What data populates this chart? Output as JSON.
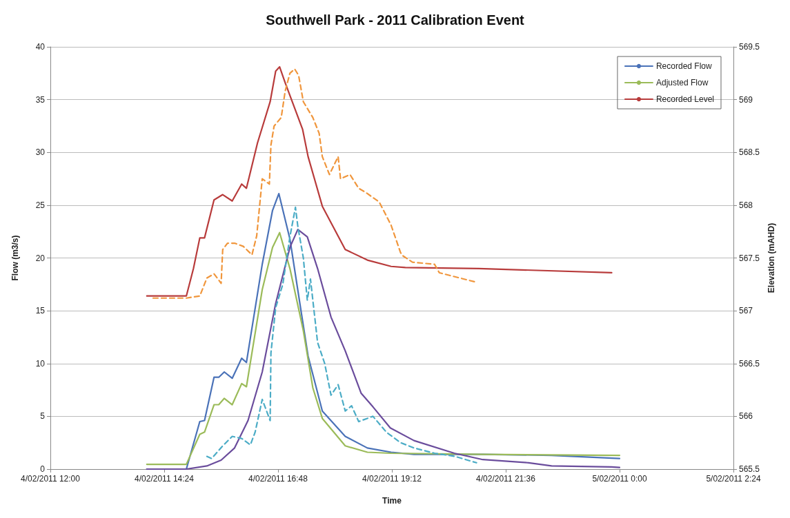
{
  "chart_data": {
    "type": "line",
    "title": "Southwell Park - 2011 Calibration Event",
    "xlabel": "Time",
    "ylabel": "Flow (m3/s)",
    "y2label": "Elevation (mAHD)",
    "xlim": [
      "2011-02-04T12:00",
      "2011-02-05T02:24"
    ],
    "xticks": [
      {
        "value": "2011-02-04T12:00",
        "label": "4/02/2011 12:00"
      },
      {
        "value": "2011-02-04T14:24",
        "label": "4/02/2011 14:24"
      },
      {
        "value": "2011-02-04T16:48",
        "label": "4/02/2011 16:48"
      },
      {
        "value": "2011-02-04T19:12",
        "label": "4/02/2011 19:12"
      },
      {
        "value": "2011-02-04T21:36",
        "label": "4/02/2011 21:36"
      },
      {
        "value": "2011-02-05T00:00",
        "label": "5/02/2011 0:00"
      },
      {
        "value": "2011-02-05T02:24",
        "label": "5/02/2011 2:24"
      }
    ],
    "ylim": [
      0,
      40
    ],
    "yticks": [
      0,
      5,
      10,
      15,
      20,
      25,
      30,
      35,
      40
    ],
    "y2lim": [
      565.5,
      569.5
    ],
    "y2ticks": [
      565.5,
      566,
      566.5,
      567,
      567.5,
      568,
      568.5,
      569,
      569.5
    ],
    "grid": "y",
    "legend": "top right",
    "marker": "none",
    "series": [
      {
        "name": "Recorded Flow",
        "color": "#4a72b8",
        "line_style": "solid",
        "x": [
          "2011-02-04T14:02",
          "2011-02-04T14:52",
          "2011-02-04T15:09",
          "2011-02-04T15:15",
          "2011-02-04T15:27",
          "2011-02-04T15:33",
          "2011-02-04T15:40",
          "2011-02-04T15:50",
          "2011-02-04T16:02",
          "2011-02-04T16:08",
          "2011-02-04T16:28",
          "2011-02-04T16:41",
          "2011-02-04T16:49",
          "2011-02-04T17:03",
          "2011-02-04T17:16",
          "2011-02-04T17:26",
          "2011-02-04T17:44",
          "2011-02-04T18:13",
          "2011-02-04T18:41",
          "2011-02-04T19:11",
          "2011-02-04T19:40",
          "2011-02-04T21:07",
          "2011-02-04T22:34",
          "2011-02-05T00:00"
        ],
        "values": [
          0,
          0,
          4.5,
          4.6,
          8.7,
          8.7,
          9.2,
          8.6,
          10.5,
          10.1,
          19.4,
          24.5,
          26.1,
          21.8,
          15.5,
          10.7,
          5.5,
          3.1,
          2.0,
          1.6,
          1.4,
          1.4,
          1.3,
          1.0
        ]
      },
      {
        "name": "Adjusted Flow",
        "color": "#9bbb59",
        "line_style": "solid",
        "x": [
          "2011-02-04T14:02",
          "2011-02-04T14:52",
          "2011-02-04T15:09",
          "2011-02-04T15:15",
          "2011-02-04T15:27",
          "2011-02-04T15:33",
          "2011-02-04T15:40",
          "2011-02-04T15:50",
          "2011-02-04T16:02",
          "2011-02-04T16:08",
          "2011-02-04T16:28",
          "2011-02-04T16:41",
          "2011-02-04T16:50",
          "2011-02-04T17:03",
          "2011-02-04T17:20",
          "2011-02-04T17:32",
          "2011-02-04T17:44",
          "2011-02-04T18:13",
          "2011-02-04T18:41",
          "2011-02-04T19:11",
          "2011-02-04T21:07",
          "2011-02-05T00:00"
        ],
        "values": [
          0.45,
          0.45,
          3.3,
          3.5,
          6.1,
          6.1,
          6.7,
          6.1,
          8.1,
          7.8,
          17,
          21,
          22.4,
          19,
          13.1,
          7.7,
          4.8,
          2.2,
          1.6,
          1.5,
          1.4,
          1.3
        ]
      },
      {
        "color": "#6a4c9c",
        "line_style": "solid",
        "x": [
          "2011-02-04T14:02",
          "2011-02-04T14:52",
          "2011-02-04T15:18",
          "2011-02-04T15:36",
          "2011-02-04T15:53",
          "2011-02-04T16:10",
          "2011-02-04T16:28",
          "2011-02-04T16:45",
          "2011-02-04T17:03",
          "2011-02-04T17:13",
          "2011-02-04T17:25",
          "2011-02-04T17:38",
          "2011-02-04T17:55",
          "2011-02-04T18:13",
          "2011-02-04T18:33",
          "2011-02-04T18:48",
          "2011-02-04T19:10",
          "2011-02-04T19:40",
          "2011-02-04T20:31",
          "2011-02-04T21:07",
          "2011-02-04T22:05",
          "2011-02-04T22:34",
          "2011-02-04T23:50",
          "2011-02-05T00:00"
        ],
        "values": [
          0,
          0,
          0.3,
          0.85,
          2,
          4.6,
          9.2,
          15.7,
          21,
          22.7,
          22,
          19,
          14.4,
          11.2,
          7.2,
          5.9,
          3.9,
          2.7,
          1.5,
          0.9,
          0.6,
          0.3,
          0.2,
          0.15
        ]
      },
      {
        "color": "#4bacc6",
        "line_style": "dashed",
        "x": [
          "2011-02-04T15:18",
          "2011-02-04T15:24",
          "2011-02-04T15:38",
          "2011-02-04T15:50",
          "2011-02-04T16:02",
          "2011-02-04T16:13",
          "2011-02-04T16:19",
          "2011-02-04T16:28",
          "2011-02-04T16:38",
          "2011-02-04T16:39",
          "2011-02-04T16:45",
          "2011-02-04T16:54",
          "2011-02-04T17:03",
          "2011-02-04T17:10",
          "2011-02-04T17:13",
          "2011-02-04T17:20",
          "2011-02-04T17:25",
          "2011-02-04T17:29",
          "2011-02-04T17:38",
          "2011-02-04T17:47",
          "2011-02-04T17:55",
          "2011-02-04T18:04",
          "2011-02-04T18:13",
          "2011-02-04T18:21",
          "2011-02-04T18:30",
          "2011-02-04T18:48",
          "2011-02-04T19:05",
          "2011-02-04T19:23",
          "2011-02-04T19:40",
          "2011-02-04T20:06",
          "2011-02-04T20:32",
          "2011-02-04T20:59"
        ],
        "values": [
          1.2,
          1.0,
          2.2,
          3.1,
          2.9,
          2.3,
          3.5,
          6.6,
          4.6,
          11,
          15.3,
          17.5,
          22,
          24.8,
          23,
          20,
          16,
          18,
          12,
          10,
          7,
          8,
          5.5,
          6,
          4.5,
          5,
          3.5,
          2.5,
          2,
          1.5,
          1.2,
          0.6
        ]
      },
      {
        "name": "Recorded Level",
        "color": "#b83b3b",
        "line_style": "solid",
        "axis": "y2",
        "x": [
          "2011-02-04T14:02",
          "2011-02-04T14:52",
          "2011-02-04T15:01",
          "2011-02-04T15:09",
          "2011-02-04T15:15",
          "2011-02-04T15:27",
          "2011-02-04T15:38",
          "2011-02-04T15:50",
          "2011-02-04T16:02",
          "2011-02-04T16:08",
          "2011-02-04T16:22",
          "2011-02-04T16:38",
          "2011-02-04T16:45",
          "2011-02-04T16:50",
          "2011-02-04T16:57",
          "2011-02-04T17:19",
          "2011-02-04T17:26",
          "2011-02-04T17:44",
          "2011-02-04T18:13",
          "2011-02-04T18:41",
          "2011-02-04T19:11",
          "2011-02-04T19:29",
          "2011-02-04T21:02",
          "2011-02-04T23:50"
        ],
        "values": [
          567.14,
          567.14,
          567.4,
          567.69,
          567.69,
          568.05,
          568.1,
          568.04,
          568.2,
          568.16,
          568.59,
          568.98,
          569.27,
          569.31,
          569.16,
          568.72,
          568.46,
          567.99,
          567.58,
          567.48,
          567.42,
          567.41,
          567.4,
          567.36
        ]
      },
      {
        "color": "#f0963c",
        "line_style": "dashed",
        "axis": "y2",
        "x": [
          "2011-02-04T14:10",
          "2011-02-04T14:52",
          "2011-02-04T15:09",
          "2011-02-04T15:18",
          "2011-02-04T15:27",
          "2011-02-04T15:36",
          "2011-02-04T15:38",
          "2011-02-04T15:44",
          "2011-02-04T15:53",
          "2011-02-04T16:04",
          "2011-02-04T16:15",
          "2011-02-04T16:21",
          "2011-02-04T16:28",
          "2011-02-04T16:37",
          "2011-02-04T16:39",
          "2011-02-04T16:43",
          "2011-02-04T16:52",
          "2011-02-04T16:57",
          "2011-02-04T17:03",
          "2011-02-04T17:09",
          "2011-02-04T17:14",
          "2011-02-04T17:20",
          "2011-02-04T17:32",
          "2011-02-04T17:40",
          "2011-02-04T17:44",
          "2011-02-04T17:53",
          "2011-02-04T18:04",
          "2011-02-04T18:07",
          "2011-02-04T18:19",
          "2011-02-04T18:30",
          "2011-02-04T18:39",
          "2011-02-04T18:56",
          "2011-02-04T19:11",
          "2011-02-04T19:23",
          "2011-02-04T19:26",
          "2011-02-04T19:38",
          "2011-02-04T20:06",
          "2011-02-04T20:12",
          "2011-02-04T20:38",
          "2011-02-04T20:59"
        ],
        "values": [
          567.12,
          567.12,
          567.14,
          567.31,
          567.35,
          567.26,
          567.58,
          567.64,
          567.64,
          567.61,
          567.53,
          567.71,
          568.25,
          568.2,
          568.57,
          568.75,
          568.83,
          569.08,
          569.25,
          569.29,
          569.23,
          568.98,
          568.83,
          568.68,
          568.46,
          568.29,
          568.46,
          568.25,
          568.29,
          568.16,
          568.12,
          568.03,
          567.81,
          567.55,
          567.52,
          567.46,
          567.44,
          567.36,
          567.31,
          567.27
        ]
      }
    ]
  }
}
